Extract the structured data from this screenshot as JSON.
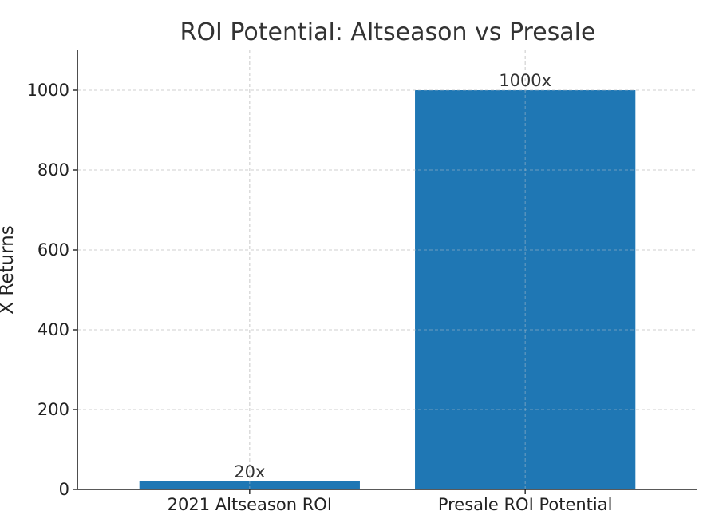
{
  "chart_data": {
    "type": "bar",
    "title": "ROI Potential: Altseason vs Presale",
    "xlabel": "",
    "ylabel": "X Returns",
    "categories": [
      "2021 Altseason ROI",
      "Presale ROI Potential"
    ],
    "values": [
      20,
      1000
    ],
    "data_labels": [
      "20x",
      "1000x"
    ],
    "ylim": [
      0,
      1100
    ],
    "yticks": [
      0,
      200,
      400,
      600,
      800,
      1000
    ],
    "ytick_labels": [
      "0",
      "200",
      "400",
      "600",
      "800",
      "1000"
    ],
    "grid": true,
    "bar_color": "#1f77b4"
  }
}
